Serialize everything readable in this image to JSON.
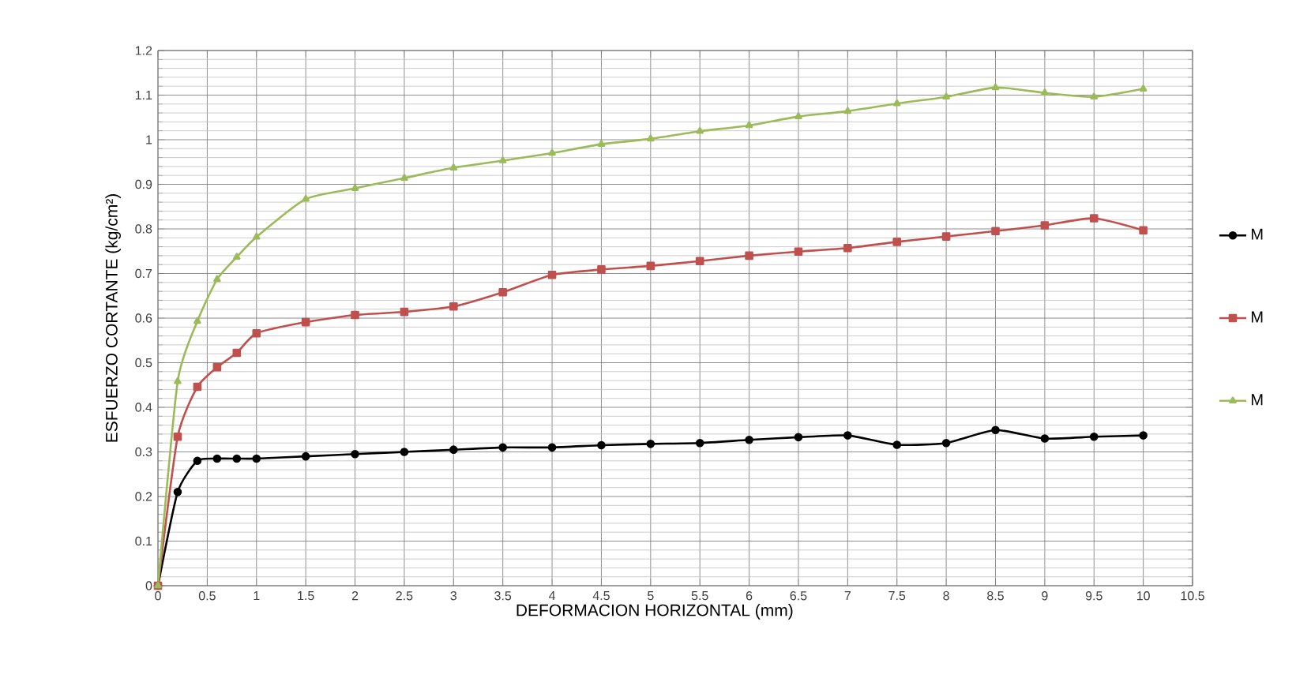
{
  "chart_data": {
    "type": "line",
    "xlabel": "DEFORMACION HORIZONTAL (mm)",
    "ylabel": "ESFUERZO CORTANTE (kg/cm²)",
    "x": [
      0,
      0.2,
      0.4,
      0.6,
      0.8,
      1,
      1.5,
      2,
      2.5,
      3,
      3.5,
      4,
      4.5,
      5,
      5.5,
      6,
      6.5,
      7,
      7.5,
      8,
      8.5,
      9,
      9.5,
      10
    ],
    "series": [
      {
        "name": "M",
        "color": "#000000",
        "marker": "circle",
        "values": [
          0,
          0.21,
          0.28,
          0.285,
          0.285,
          0.285,
          0.29,
          0.295,
          0.3,
          0.305,
          0.31,
          0.31,
          0.315,
          0.318,
          0.32,
          0.327,
          0.333,
          0.337,
          0.316,
          0.32,
          0.349,
          0.33,
          0.334,
          0.337
        ]
      },
      {
        "name": "M",
        "color": "#c0504d",
        "marker": "square",
        "values": [
          0,
          0.334,
          0.446,
          0.49,
          0.522,
          0.566,
          0.591,
          0.607,
          0.614,
          0.626,
          0.658,
          0.697,
          0.709,
          0.717,
          0.728,
          0.74,
          0.749,
          0.757,
          0.771,
          0.783,
          0.795,
          0.808,
          0.824,
          0.797
        ]
      },
      {
        "name": "M",
        "color": "#9bbb59",
        "marker": "triangle",
        "values": [
          0,
          0.458,
          0.593,
          0.687,
          0.737,
          0.782,
          0.867,
          0.891,
          0.914,
          0.937,
          0.953,
          0.97,
          0.99,
          1.002,
          1.019,
          1.032,
          1.052,
          1.064,
          1.081,
          1.096,
          1.117,
          1.105,
          1.096,
          1.114
        ]
      }
    ],
    "xlim": [
      0,
      10.5
    ],
    "xticks": [
      0,
      0.5,
      1,
      1.5,
      2,
      2.5,
      3,
      3.5,
      4,
      4.5,
      5,
      5.5,
      6,
      6.5,
      7,
      7.5,
      8,
      8.5,
      9,
      9.5,
      10,
      10.5
    ],
    "ylim": [
      0,
      1.2
    ],
    "yticks": [
      0,
      0.1,
      0.2,
      0.3,
      0.4,
      0.5,
      0.6,
      0.7,
      0.8,
      0.9,
      1,
      1.1,
      1.2
    ],
    "grid": true,
    "legend": "right",
    "line_style": "solid"
  }
}
